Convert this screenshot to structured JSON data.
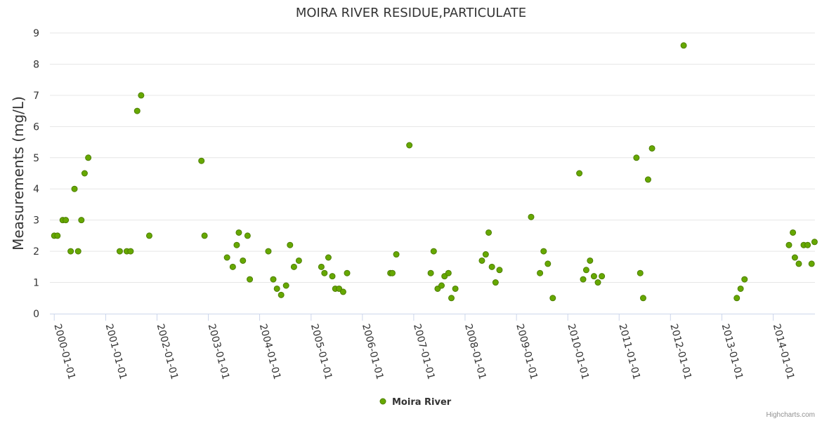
{
  "credits": "Highcharts.com",
  "chart_data": {
    "type": "scatter",
    "title": "MOIRA RIVER RESIDUE,PARTICULATE",
    "xlabel": "",
    "ylabel": "Measurements (mg/L)",
    "ylim": [
      0,
      9
    ],
    "yticks": [
      "0",
      "1",
      "2",
      "3",
      "4",
      "5",
      "6",
      "7",
      "8",
      "9"
    ],
    "xlim": [
      "1999-12-01",
      "2014-10-25"
    ],
    "xticks": [
      "2000-01-01",
      "2001-01-01",
      "2002-01-01",
      "2003-01-01",
      "2004-01-01",
      "2005-01-01",
      "2006-01-01",
      "2007-01-01",
      "2008-01-01",
      "2009-01-01",
      "2010-01-01",
      "2011-01-01",
      "2012-01-01",
      "2013-01-01",
      "2014-01-01"
    ],
    "grid": true,
    "legend_position": "bottom-center",
    "colors": {
      "marker_fill": "#66a800",
      "marker_stroke": "#4d7e00",
      "grid": "#e6e6e6",
      "axis": "#ccd6eb"
    },
    "series": [
      {
        "name": "Moira River",
        "points": [
          {
            "x": "2000-01-01",
            "y": 2.5
          },
          {
            "x": "2000-01-24",
            "y": 2.5
          },
          {
            "x": "2000-03-01",
            "y": 3.0
          },
          {
            "x": "2000-03-23",
            "y": 3.0
          },
          {
            "x": "2000-04-27",
            "y": 2.0
          },
          {
            "x": "2000-05-24",
            "y": 4.0
          },
          {
            "x": "2000-06-19",
            "y": 2.0
          },
          {
            "x": "2000-07-12",
            "y": 3.0
          },
          {
            "x": "2000-08-04",
            "y": 4.5
          },
          {
            "x": "2000-08-30",
            "y": 5.0
          },
          {
            "x": "2001-04-11",
            "y": 2.0
          },
          {
            "x": "2001-05-31",
            "y": 2.0
          },
          {
            "x": "2001-06-27",
            "y": 2.0
          },
          {
            "x": "2001-08-13",
            "y": 6.5
          },
          {
            "x": "2001-09-10",
            "y": 7.0
          },
          {
            "x": "2001-11-07",
            "y": 2.5
          },
          {
            "x": "2002-11-13",
            "y": 4.9
          },
          {
            "x": "2002-12-05",
            "y": 2.5
          },
          {
            "x": "2003-05-14",
            "y": 1.8
          },
          {
            "x": "2003-06-24",
            "y": 1.5
          },
          {
            "x": "2003-07-22",
            "y": 2.2
          },
          {
            "x": "2003-08-06",
            "y": 2.6
          },
          {
            "x": "2003-09-04",
            "y": 1.7
          },
          {
            "x": "2003-10-07",
            "y": 2.5
          },
          {
            "x": "2003-10-23",
            "y": 1.1
          },
          {
            "x": "2004-03-03",
            "y": 2.0
          },
          {
            "x": "2004-04-07",
            "y": 1.1
          },
          {
            "x": "2004-05-03",
            "y": 0.8
          },
          {
            "x": "2004-06-02",
            "y": 0.6
          },
          {
            "x": "2004-07-07",
            "y": 0.9
          },
          {
            "x": "2004-08-04",
            "y": 2.2
          },
          {
            "x": "2004-09-01",
            "y": 1.5
          },
          {
            "x": "2004-10-06",
            "y": 1.7
          },
          {
            "x": "2005-03-15",
            "y": 1.5
          },
          {
            "x": "2005-04-06",
            "y": 1.3
          },
          {
            "x": "2005-05-04",
            "y": 1.8
          },
          {
            "x": "2005-06-01",
            "y": 1.2
          },
          {
            "x": "2005-06-22",
            "y": 0.8
          },
          {
            "x": "2005-07-19",
            "y": 0.8
          },
          {
            "x": "2005-08-17",
            "y": 0.7
          },
          {
            "x": "2005-09-14",
            "y": 1.3
          },
          {
            "x": "2006-07-19",
            "y": 1.3
          },
          {
            "x": "2006-08-02",
            "y": 1.3
          },
          {
            "x": "2006-08-30",
            "y": 1.9
          },
          {
            "x": "2006-12-01",
            "y": 5.4
          },
          {
            "x": "2007-05-02",
            "y": 1.3
          },
          {
            "x": "2007-05-23",
            "y": 2.0
          },
          {
            "x": "2007-06-20",
            "y": 0.8
          },
          {
            "x": "2007-07-18",
            "y": 0.9
          },
          {
            "x": "2007-08-08",
            "y": 1.2
          },
          {
            "x": "2007-09-05",
            "y": 1.3
          },
          {
            "x": "2007-09-26",
            "y": 0.5
          },
          {
            "x": "2007-10-24",
            "y": 0.8
          },
          {
            "x": "2008-04-30",
            "y": 1.7
          },
          {
            "x": "2008-05-27",
            "y": 1.9
          },
          {
            "x": "2008-06-17",
            "y": 2.6
          },
          {
            "x": "2008-07-10",
            "y": 1.5
          },
          {
            "x": "2008-08-05",
            "y": 1.0
          },
          {
            "x": "2008-09-02",
            "y": 1.4
          },
          {
            "x": "2009-04-15",
            "y": 3.1
          },
          {
            "x": "2009-06-17",
            "y": 1.3
          },
          {
            "x": "2009-07-13",
            "y": 2.0
          },
          {
            "x": "2009-08-12",
            "y": 1.6
          },
          {
            "x": "2009-09-16",
            "y": 0.5
          },
          {
            "x": "2010-03-24",
            "y": 4.5
          },
          {
            "x": "2010-04-20",
            "y": 1.1
          },
          {
            "x": "2010-05-12",
            "y": 1.4
          },
          {
            "x": "2010-06-08",
            "y": 1.7
          },
          {
            "x": "2010-07-06",
            "y": 1.2
          },
          {
            "x": "2010-08-03",
            "y": 1.0
          },
          {
            "x": "2010-08-31",
            "y": 1.2
          },
          {
            "x": "2011-05-04",
            "y": 5.0
          },
          {
            "x": "2011-05-31",
            "y": 1.3
          },
          {
            "x": "2011-06-21",
            "y": 0.5
          },
          {
            "x": "2011-07-26",
            "y": 4.3
          },
          {
            "x": "2011-08-23",
            "y": 5.3
          },
          {
            "x": "2012-04-04",
            "y": 8.6
          },
          {
            "x": "2013-04-17",
            "y": 0.5
          },
          {
            "x": "2013-05-14",
            "y": 0.8
          },
          {
            "x": "2013-06-11",
            "y": 1.1
          },
          {
            "x": "2014-04-23",
            "y": 2.2
          },
          {
            "x": "2014-05-21",
            "y": 2.6
          },
          {
            "x": "2014-06-04",
            "y": 1.8
          },
          {
            "x": "2014-07-02",
            "y": 1.6
          },
          {
            "x": "2014-08-06",
            "y": 2.2
          },
          {
            "x": "2014-09-03",
            "y": 2.2
          },
          {
            "x": "2014-10-01",
            "y": 1.6
          },
          {
            "x": "2014-10-22",
            "y": 2.3
          }
        ]
      }
    ]
  }
}
